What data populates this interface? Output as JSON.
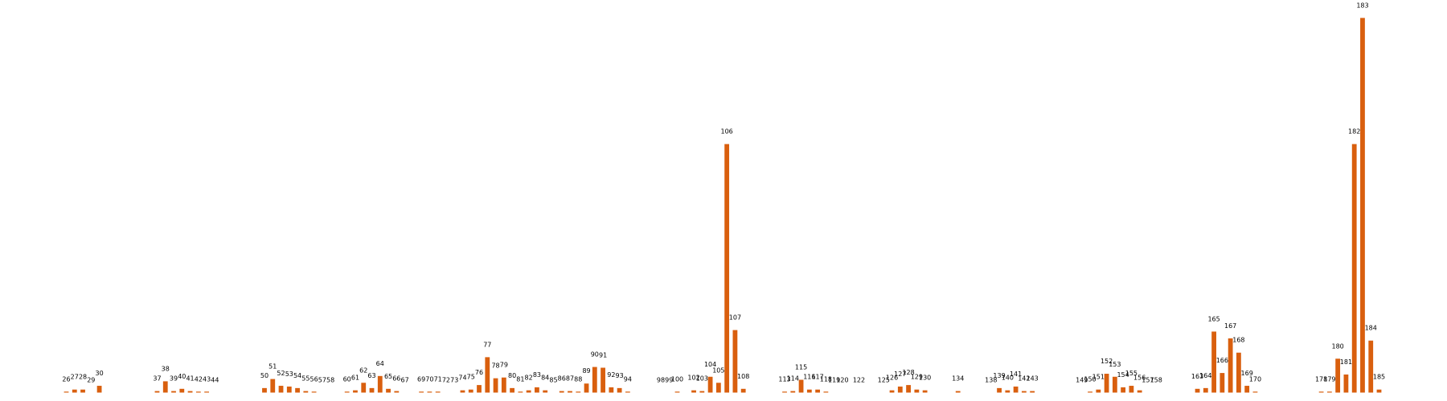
{
  "chart_data": {
    "type": "bar",
    "title": "",
    "xlabel": "",
    "ylabel": "",
    "bar_color": "#d95f0e",
    "ylim": [
      0,
      1000
    ],
    "grid": false,
    "axes_visible": false,
    "x": [
      26,
      27,
      28,
      29,
      30,
      37,
      38,
      39,
      40,
      41,
      42,
      43,
      44,
      50,
      51,
      52,
      53,
      54,
      55,
      56,
      57,
      58,
      60,
      61,
      62,
      63,
      64,
      65,
      66,
      67,
      69,
      70,
      71,
      72,
      73,
      74,
      75,
      76,
      77,
      78,
      79,
      80,
      81,
      82,
      83,
      84,
      85,
      86,
      87,
      88,
      89,
      90,
      91,
      92,
      93,
      94,
      98,
      99,
      100,
      102,
      103,
      104,
      105,
      106,
      107,
      108,
      113,
      114,
      115,
      116,
      117,
      118,
      119,
      120,
      122,
      125,
      126,
      127,
      128,
      129,
      130,
      134,
      138,
      139,
      140,
      141,
      142,
      143,
      149,
      150,
      151,
      152,
      153,
      154,
      155,
      156,
      157,
      158,
      163,
      164,
      165,
      166,
      167,
      168,
      169,
      170,
      178,
      179,
      180,
      181,
      182,
      183,
      184,
      185
    ],
    "values": [
      2,
      8,
      8,
      0,
      18,
      4,
      30,
      4,
      10,
      4,
      2,
      2,
      0,
      12,
      36,
      18,
      16,
      12,
      4,
      2,
      0,
      0,
      2,
      6,
      26,
      12,
      44,
      10,
      4,
      0,
      2,
      2,
      2,
      0,
      0,
      6,
      8,
      20,
      94,
      38,
      40,
      12,
      2,
      6,
      14,
      6,
      0,
      4,
      4,
      2,
      24,
      68,
      66,
      14,
      12,
      2,
      0,
      0,
      2,
      6,
      4,
      42,
      26,
      660,
      166,
      10,
      2,
      4,
      34,
      8,
      8,
      2,
      0,
      0,
      0,
      0,
      6,
      16,
      20,
      8,
      6,
      4,
      0,
      12,
      6,
      16,
      4,
      4,
      0,
      2,
      8,
      50,
      42,
      14,
      18,
      6,
      0,
      0,
      10,
      12,
      162,
      52,
      144,
      106,
      18,
      2,
      2,
      2,
      90,
      48,
      660,
      995,
      138,
      8
    ]
  }
}
